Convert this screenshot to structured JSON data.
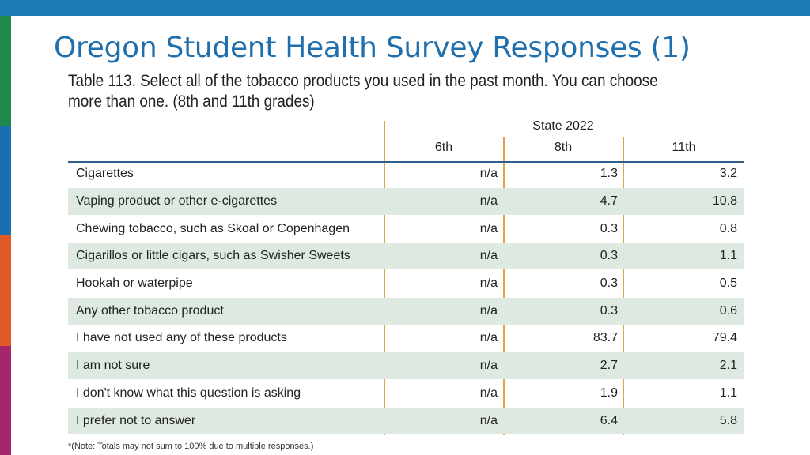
{
  "colors": {
    "top_bar": "#1a7ab5",
    "title": "#1f6fad",
    "side_stripes": [
      "#1f8a4c",
      "#1a6fb0",
      "#e05a28",
      "#a3266a"
    ],
    "row_shade": "#dde9e1",
    "column_rule": "#e0a24a"
  },
  "slide": {
    "title": "Oregon Student Health Survey Responses (1)"
  },
  "table": {
    "caption": "Table 113. Select all of the tobacco products you used in the past month. You can choose more than one. (8th and 11th grades)",
    "group_header": "State 2022",
    "columns": [
      "6th",
      "8th",
      "11th"
    ],
    "rows": [
      {
        "label": "Cigarettes",
        "v6": "n/a",
        "v8": "1.3",
        "v11": "3.2"
      },
      {
        "label": "Vaping product or other e-cigarettes",
        "v6": "n/a",
        "v8": "4.7",
        "v11": "10.8"
      },
      {
        "label": "Chewing tobacco, such as Skoal or Copenhagen",
        "v6": "n/a",
        "v8": "0.3",
        "v11": "0.8"
      },
      {
        "label": "Cigarillos or little cigars, such as Swisher Sweets",
        "v6": "n/a",
        "v8": "0.3",
        "v11": "1.1"
      },
      {
        "label": "Hookah or waterpipe",
        "v6": "n/a",
        "v8": "0.3",
        "v11": "0.5"
      },
      {
        "label": "Any other tobacco product",
        "v6": "n/a",
        "v8": "0.3",
        "v11": "0.6"
      },
      {
        "label": "I have not used any of these products",
        "v6": "n/a",
        "v8": "83.7",
        "v11": "79.4"
      },
      {
        "label": "I am not sure",
        "v6": "n/a",
        "v8": "2.7",
        "v11": "2.1"
      },
      {
        "label": "I don't know what this question is asking",
        "v6": "n/a",
        "v8": "1.9",
        "v11": "1.1"
      },
      {
        "label": "I prefer not to answer",
        "v6": "n/a",
        "v8": "6.4",
        "v11": "5.8"
      }
    ],
    "note": "*(Note: Totals may not sum to 100% due to multiple responses.)"
  }
}
